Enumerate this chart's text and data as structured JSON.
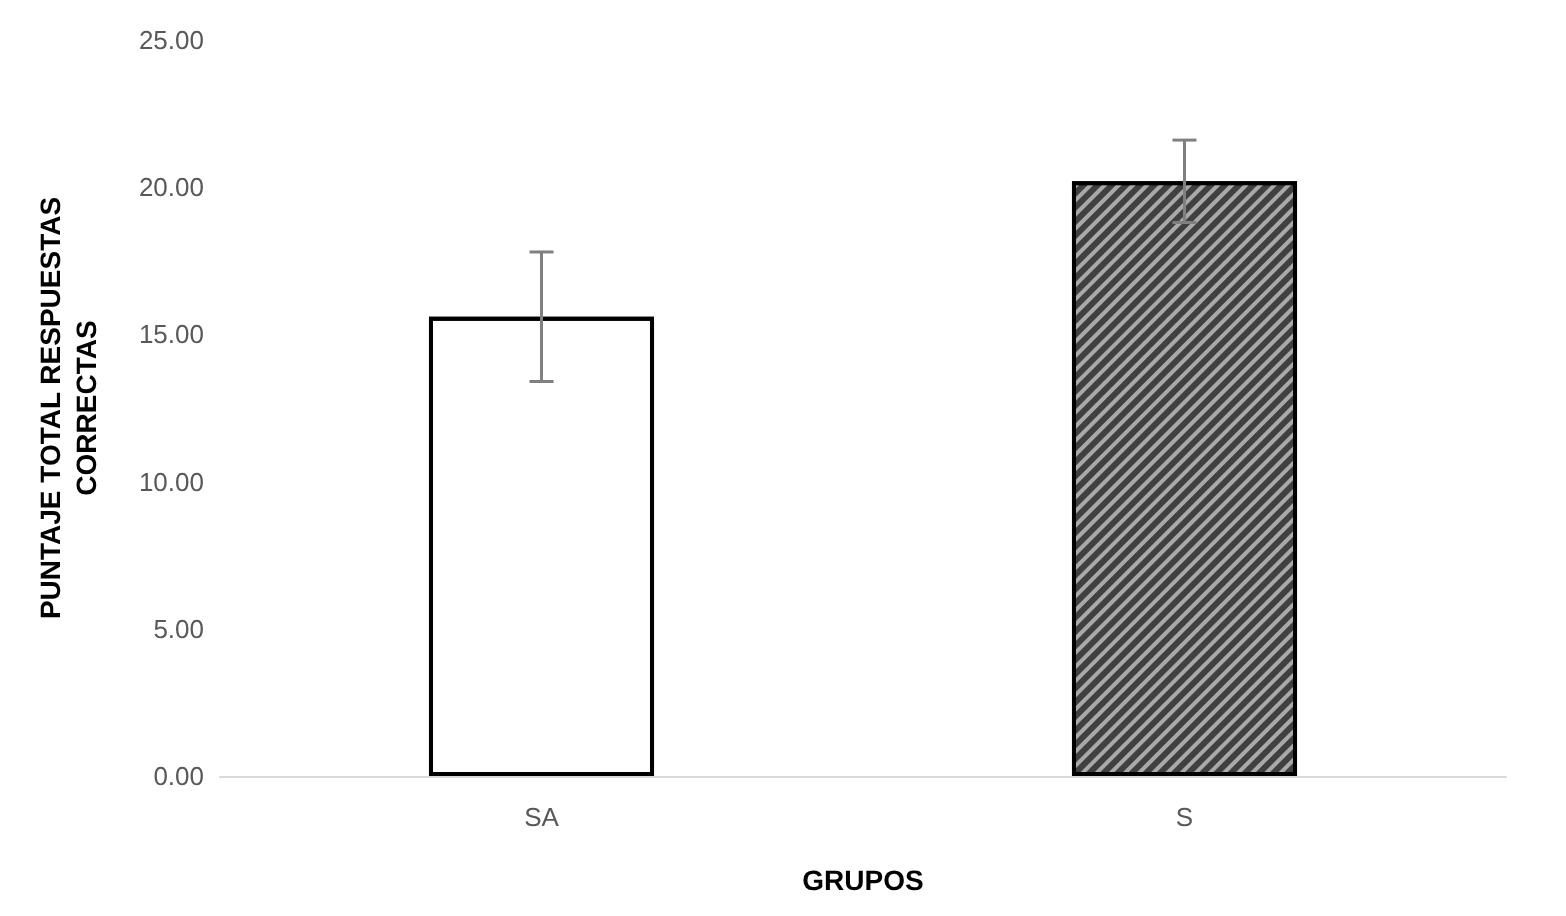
{
  "chart_data": {
    "type": "bar",
    "xlabel": "GRUPOS",
    "ylabel": "PUNTAJE TOTAL RESPUESTAS\nCORRECTAS",
    "categories": [
      "SA",
      "S"
    ],
    "values": [
      15.6,
      20.2
    ],
    "errors": [
      2.2,
      1.4
    ],
    "colors": [
      "#ffffff",
      "#404040"
    ],
    "ylim": [
      0,
      25
    ],
    "yticks": [
      {
        "value": 0,
        "label": "0.00"
      },
      {
        "value": 5,
        "label": "5.00"
      },
      {
        "value": 10,
        "label": "10.00"
      },
      {
        "value": 15,
        "label": "15.00"
      },
      {
        "value": 20,
        "label": "20.00"
      },
      {
        "value": 25,
        "label": "25.00"
      }
    ],
    "grid": false
  }
}
